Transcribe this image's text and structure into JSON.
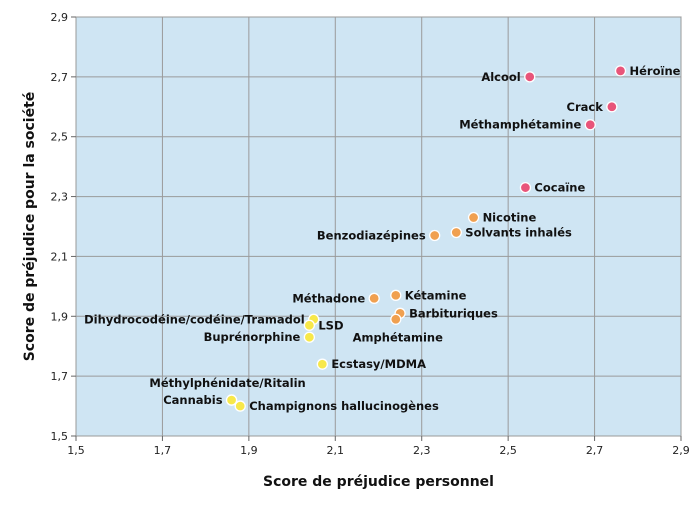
{
  "chart_data": {
    "type": "scatter",
    "xlabel": "Score de préjudice personnel",
    "ylabel": "Score de préjudice pour la société",
    "xlim": [
      1.5,
      2.9
    ],
    "ylim": [
      1.5,
      2.9
    ],
    "x_ticks": [
      "1,5",
      "1,7",
      "1,9",
      "2,1",
      "2,3",
      "2,5",
      "2,7",
      "2,9"
    ],
    "y_ticks": [
      "1,5",
      "1,7",
      "1,9",
      "2,1",
      "2,3",
      "2,5",
      "2,7",
      "2,9"
    ],
    "grid": true,
    "colors": {
      "plot_background": "#cfe5f3",
      "grid": "#9a9a9a",
      "high": "#e8557a",
      "medium": "#f0a050",
      "low": "#f7e84a"
    },
    "points": [
      {
        "label": "Héroïne",
        "x": 2.76,
        "y": 2.72,
        "group": "high",
        "label_side": "right"
      },
      {
        "label": "Alcool",
        "x": 2.55,
        "y": 2.7,
        "group": "high",
        "label_side": "left"
      },
      {
        "label": "Crack",
        "x": 2.74,
        "y": 2.6,
        "group": "high",
        "label_side": "left"
      },
      {
        "label": "Méthamphétamine",
        "x": 2.69,
        "y": 2.54,
        "group": "high",
        "label_side": "left"
      },
      {
        "label": "Cocaïne",
        "x": 2.54,
        "y": 2.33,
        "group": "high",
        "label_side": "right"
      },
      {
        "label": "Nicotine",
        "x": 2.42,
        "y": 2.23,
        "group": "medium",
        "label_side": "right"
      },
      {
        "label": "Solvants inhalés",
        "x": 2.38,
        "y": 2.18,
        "group": "medium",
        "label_side": "right"
      },
      {
        "label": "Benzodiazépines",
        "x": 2.33,
        "y": 2.17,
        "group": "medium",
        "label_side": "left"
      },
      {
        "label": "Méthadone",
        "x": 2.19,
        "y": 1.96,
        "group": "medium",
        "label_side": "left"
      },
      {
        "label": "Kétamine",
        "x": 2.24,
        "y": 1.97,
        "group": "medium",
        "label_side": "right"
      },
      {
        "label": "Barbituriques",
        "x": 2.25,
        "y": 1.91,
        "group": "medium",
        "label_side": "right"
      },
      {
        "label": "Amphétamine",
        "x": 2.24,
        "y": 1.89,
        "group": "medium",
        "label_side": "below"
      },
      {
        "label": "Dihydrocodéine/codéine/Tramadol",
        "x": 2.05,
        "y": 1.89,
        "group": "low",
        "label_side": "left"
      },
      {
        "label": "LSD",
        "x": 2.04,
        "y": 1.87,
        "group": "low",
        "label_side": "right"
      },
      {
        "label": "Buprénorphine",
        "x": 2.04,
        "y": 1.83,
        "group": "low",
        "label_side": "left"
      },
      {
        "label": "Ecstasy/MDMA",
        "x": 2.07,
        "y": 1.74,
        "group": "low",
        "label_side": "right"
      },
      {
        "label": "Méthylphénidate/Ritalin",
        "x": 1.86,
        "y": 1.62,
        "group": "low",
        "label_side": "above"
      },
      {
        "label": "Cannabis",
        "x": 1.86,
        "y": 1.62,
        "group": "low",
        "label_side": "left"
      },
      {
        "label": "Champignons hallucinogènes",
        "x": 1.88,
        "y": 1.6,
        "group": "low",
        "label_side": "right"
      }
    ]
  }
}
